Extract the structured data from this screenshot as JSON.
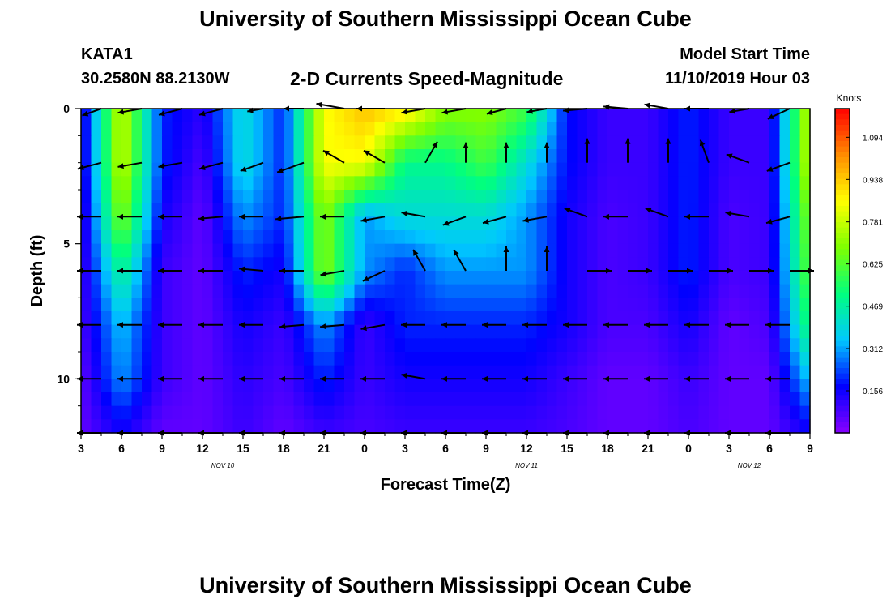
{
  "header": {
    "title": "University of Southern Mississippi Ocean Cube",
    "station": "KATA1",
    "coordinates": "30.2580N 88.2130W",
    "subtitle": "2-D Currents Speed-Magnitude",
    "model_label": "Model Start Time",
    "model_time": "11/10/2019 Hour 03"
  },
  "footer": {
    "title": "University of Southern Mississippi Ocean Cube"
  },
  "chart_data": {
    "type": "heatmap",
    "title": "2-D Currents Speed-Magnitude",
    "xlabel": "Forecast Time(Z)",
    "ylabel": "Depth (ft)",
    "x_tick_labels": [
      "3",
      "6",
      "9",
      "12",
      "15",
      "18",
      "21",
      "0",
      "3",
      "6",
      "9",
      "12",
      "15",
      "18",
      "21",
      "0",
      "3",
      "6",
      "9"
    ],
    "date_labels": [
      {
        "label": "NOV 10",
        "tick_index": 3.5
      },
      {
        "label": "NOV 11",
        "tick_index": 11
      },
      {
        "label": "NOV 12",
        "tick_index": 16.5
      }
    ],
    "xlim_hours": [
      0,
      54
    ],
    "y_tick_labels": [
      "0",
      "5",
      "10"
    ],
    "ylim_ft": [
      0,
      12
    ],
    "depths_ft": [
      0,
      2,
      4,
      6,
      8,
      10,
      12
    ],
    "colorbar": {
      "unit": "Knots",
      "range": [
        0,
        1.2
      ],
      "tick_labels": [
        "1.094",
        "0.938",
        "0.781",
        "0.625",
        "0.469",
        "0.312",
        "0.156"
      ],
      "colors": [
        "#8800ff",
        "#0000ff",
        "#00c8ff",
        "#00ff7f",
        "#7fff00",
        "#ffff00",
        "#ff8c00",
        "#ff0000"
      ]
    },
    "speed_grid": {
      "columns_hours": [
        0,
        3,
        6,
        9,
        12,
        15,
        18,
        21,
        24,
        27,
        30,
        33,
        36,
        39,
        42,
        45,
        48,
        51,
        54
      ],
      "rows_depth_ft": [
        0,
        2,
        4,
        6,
        8,
        10,
        12
      ],
      "values_knots": [
        [
          0.1,
          0.8,
          0.2,
          0.12,
          0.4,
          0.2,
          0.85,
          0.95,
          0.9,
          0.7,
          0.7,
          0.6,
          0.18,
          0.1,
          0.1,
          0.2,
          0.1,
          0.1,
          0.8
        ],
        [
          0.1,
          0.8,
          0.2,
          0.08,
          0.4,
          0.2,
          0.85,
          0.85,
          0.5,
          0.5,
          0.6,
          0.4,
          0.18,
          0.1,
          0.1,
          0.2,
          0.1,
          0.1,
          0.8
        ],
        [
          0.08,
          0.7,
          0.15,
          0.05,
          0.3,
          0.2,
          0.7,
          0.3,
          0.4,
          0.4,
          0.4,
          0.3,
          0.15,
          0.08,
          0.1,
          0.2,
          0.08,
          0.1,
          0.7
        ],
        [
          0.08,
          0.5,
          0.1,
          0.05,
          0.2,
          0.15,
          0.7,
          0.3,
          0.2,
          0.3,
          0.3,
          0.3,
          0.15,
          0.08,
          0.1,
          0.2,
          0.08,
          0.1,
          0.65
        ],
        [
          0.08,
          0.35,
          0.1,
          0.05,
          0.15,
          0.1,
          0.3,
          0.1,
          0.2,
          0.2,
          0.2,
          0.2,
          0.15,
          0.08,
          0.08,
          0.15,
          0.05,
          0.08,
          0.55
        ],
        [
          0.05,
          0.3,
          0.1,
          0.05,
          0.12,
          0.08,
          0.2,
          0.1,
          0.15,
          0.15,
          0.15,
          0.15,
          0.1,
          0.05,
          0.05,
          0.1,
          0.05,
          0.05,
          0.35
        ],
        [
          0.05,
          0.15,
          0.05,
          0.05,
          0.1,
          0.05,
          0.1,
          0.08,
          0.1,
          0.1,
          0.1,
          0.1,
          0.08,
          0.05,
          0.05,
          0.08,
          0.05,
          0.05,
          0.15
        ]
      ]
    },
    "vector_columns_hours": [
      1.5,
      4.5,
      7.5,
      10.5,
      13.5,
      16.5,
      19.5,
      22.5,
      25.5,
      28.5,
      31.5,
      34.5,
      37.5,
      40.5,
      43.5,
      46.5,
      49.5,
      52.5
    ],
    "vector_rows_depth_ft": [
      0,
      2,
      4,
      6,
      8,
      10,
      12
    ],
    "vector_angles_deg": [
      [
        200,
        190,
        195,
        195,
        190,
        180,
        170,
        180,
        190,
        190,
        195,
        190,
        185,
        175,
        170,
        180,
        190,
        205
      ],
      [
        195,
        190,
        190,
        195,
        200,
        200,
        150,
        150,
        60,
        90,
        90,
        90,
        90,
        90,
        90,
        110,
        160,
        200
      ],
      [
        180,
        180,
        180,
        185,
        180,
        185,
        180,
        190,
        170,
        200,
        195,
        190,
        160,
        180,
        160,
        180,
        170,
        195
      ],
      [
        180,
        180,
        180,
        180,
        175,
        180,
        190,
        205,
        120,
        120,
        90,
        90,
        0,
        0,
        0,
        0,
        0,
        0
      ],
      [
        180,
        180,
        180,
        180,
        180,
        185,
        185,
        190,
        180,
        180,
        180,
        180,
        180,
        180,
        180,
        180,
        180,
        180
      ],
      [
        180,
        180,
        180,
        180,
        180,
        180,
        180,
        180,
        170,
        180,
        180,
        180,
        180,
        180,
        180,
        180,
        180,
        180
      ],
      [
        180,
        180,
        180,
        180,
        180,
        180,
        180,
        180,
        180,
        180,
        180,
        180,
        180,
        180,
        180,
        180,
        180,
        180
      ]
    ],
    "vector_lengths_knots": [
      [
        0.25,
        0.3,
        0.3,
        0.3,
        0.2,
        0.25,
        0.35,
        0.35,
        0.3,
        0.3,
        0.25,
        0.25,
        0.3,
        0.3,
        0.3,
        0.3,
        0.25,
        0.3
      ],
      [
        0.3,
        0.3,
        0.3,
        0.3,
        0.3,
        0.35,
        0.3,
        0.3,
        0.3,
        0.25,
        0.25,
        0.25,
        0.3,
        0.3,
        0.3,
        0.3,
        0.3,
        0.3
      ],
      [
        0.3,
        0.3,
        0.3,
        0.3,
        0.3,
        0.35,
        0.3,
        0.3,
        0.3,
        0.3,
        0.3,
        0.3,
        0.3,
        0.3,
        0.3,
        0.3,
        0.3,
        0.3
      ],
      [
        0.3,
        0.3,
        0.3,
        0.3,
        0.3,
        0.3,
        0.3,
        0.3,
        0.3,
        0.3,
        0.3,
        0.3,
        0.3,
        0.3,
        0.3,
        0.3,
        0.3,
        0.3
      ],
      [
        0.3,
        0.3,
        0.3,
        0.3,
        0.3,
        0.3,
        0.3,
        0.3,
        0.3,
        0.3,
        0.3,
        0.3,
        0.3,
        0.3,
        0.3,
        0.3,
        0.3,
        0.3
      ],
      [
        0.3,
        0.3,
        0.3,
        0.3,
        0.3,
        0.3,
        0.3,
        0.3,
        0.3,
        0.3,
        0.3,
        0.3,
        0.3,
        0.3,
        0.3,
        0.3,
        0.3,
        0.3
      ],
      [
        0.3,
        0.3,
        0.3,
        0.3,
        0.3,
        0.3,
        0.3,
        0.3,
        0.3,
        0.3,
        0.3,
        0.3,
        0.3,
        0.3,
        0.3,
        0.3,
        0.3,
        0.3
      ]
    ]
  }
}
